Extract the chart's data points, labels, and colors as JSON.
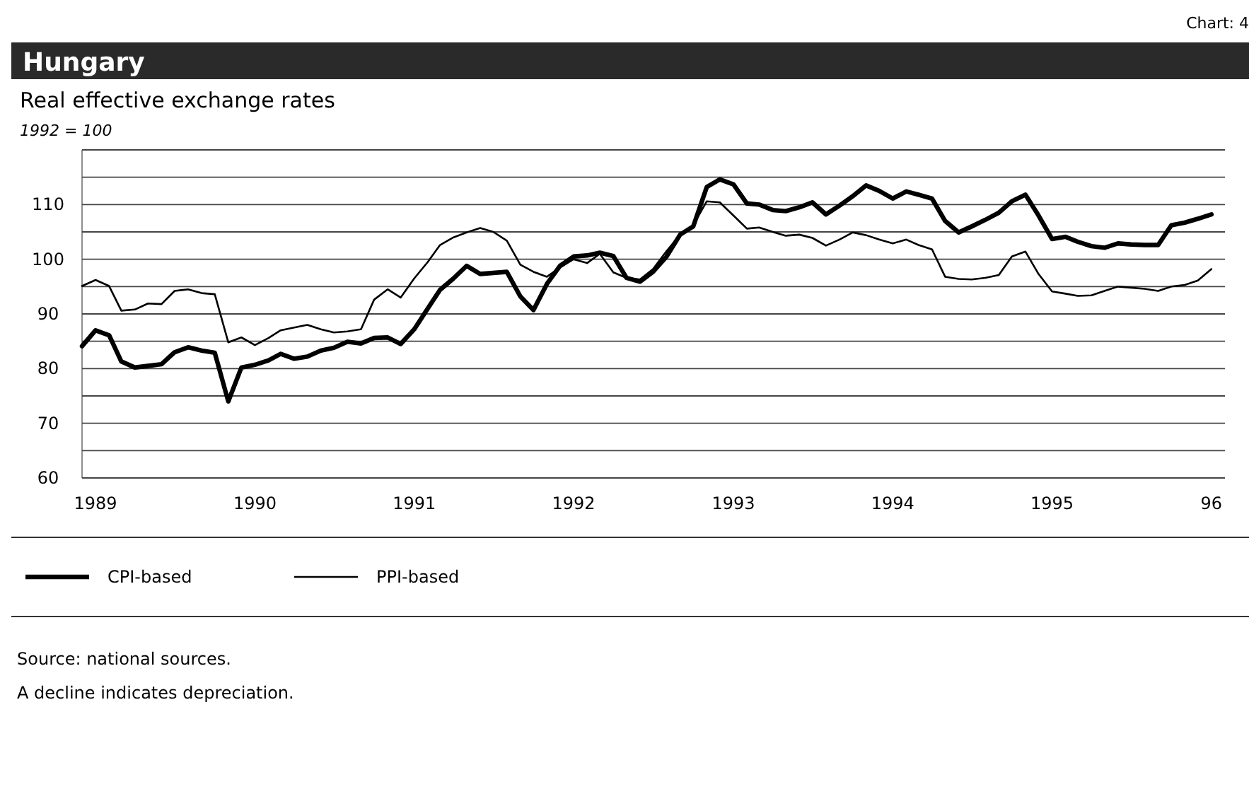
{
  "chart_data": {
    "type": "line",
    "title": "Hungary",
    "subtitle": "Real effective exchange rates",
    "ylabel": "1992 = 100",
    "annotations": [
      "Chart: 4",
      "Source: national sources.",
      "A decline indicates depreciation."
    ],
    "x": [
      "1988-12",
      "1989-01",
      "1989-02",
      "1989-03",
      "1989-04",
      "1989-05",
      "1989-06",
      "1989-07",
      "1989-08",
      "1989-09",
      "1989-10",
      "1989-11",
      "1989-12",
      "1990-01",
      "1990-02",
      "1990-03",
      "1990-04",
      "1990-05",
      "1990-06",
      "1990-07",
      "1990-08",
      "1990-09",
      "1990-10",
      "1990-11",
      "1990-12",
      "1991-01",
      "1991-02",
      "1991-03",
      "1991-04",
      "1991-05",
      "1991-06",
      "1991-07",
      "1991-08",
      "1991-09",
      "1991-10",
      "1991-11",
      "1991-12",
      "1992-01",
      "1992-02",
      "1992-03",
      "1992-04",
      "1992-05",
      "1992-06",
      "1992-07",
      "1992-08",
      "1992-09",
      "1992-10",
      "1992-11",
      "1992-12",
      "1993-01",
      "1993-02",
      "1993-03",
      "1993-04",
      "1993-05",
      "1993-06",
      "1993-07",
      "1993-08",
      "1993-09",
      "1993-10",
      "1993-11",
      "1993-12",
      "1994-01",
      "1994-02",
      "1994-03",
      "1994-04",
      "1994-05",
      "1994-06",
      "1994-07",
      "1994-08",
      "1994-09",
      "1994-10",
      "1994-11",
      "1994-12",
      "1995-01",
      "1995-02",
      "1995-03",
      "1995-04",
      "1995-05",
      "1995-06",
      "1995-07",
      "1995-08",
      "1995-09",
      "1995-10",
      "1995-11",
      "1995-12",
      "1996-01"
    ],
    "xlim": [
      "1988-12",
      "1996-02"
    ],
    "xticks": [
      {
        "value": "1989",
        "label": "1989"
      },
      {
        "value": "1990",
        "label": "1990"
      },
      {
        "value": "1991",
        "label": "1991"
      },
      {
        "value": "1992",
        "label": "1992"
      },
      {
        "value": "1993",
        "label": "1993"
      },
      {
        "value": "1994",
        "label": "1994"
      },
      {
        "value": "1995",
        "label": "1995"
      },
      {
        "value": "1996",
        "label": "96"
      }
    ],
    "ylim": [
      60,
      120
    ],
    "yticks": [
      60,
      {
        "value": 65,
        "label": null
      },
      70,
      {
        "value": 75,
        "label": null
      },
      80,
      {
        "value": 85,
        "label": null
      },
      90,
      {
        "value": 95,
        "label": null
      },
      100,
      {
        "value": 105,
        "label": null
      },
      110,
      {
        "value": 115,
        "label": null
      },
      {
        "value": 120,
        "label": null
      }
    ],
    "grid": "y",
    "legend": "bottom",
    "marker": "none",
    "line_style": "solid",
    "series": [
      {
        "name": "CPI-based",
        "color": "#000000",
        "values": [
          84.1,
          87,
          86.1,
          81.3,
          80.2,
          80.5,
          80.8,
          83,
          83.9,
          83.3,
          82.9,
          74,
          80.2,
          80.7,
          81.5,
          82.7,
          81.8,
          82.2,
          83.3,
          83.8,
          84.9,
          84.6,
          85.6,
          85.7,
          84.5,
          87.2,
          91,
          94.4,
          96.5,
          98.8,
          97.3,
          97.5,
          97.7,
          93.2,
          90.7,
          95.5,
          98.8,
          100.5,
          100.7,
          101.2,
          100.6,
          96.6,
          95.9,
          97.7,
          100.5,
          104.5,
          106,
          113.2,
          114.6,
          113.7,
          110.2,
          110,
          109,
          108.8,
          109.5,
          110.4,
          108.2,
          109.8,
          111.5,
          113.5,
          112.5,
          111.1,
          112.4,
          111.8,
          111.1,
          107,
          104.9,
          106,
          107.2,
          108.5,
          110.6,
          111.8,
          108,
          103.7,
          104.1,
          103.2,
          102.4,
          102.1,
          102.9,
          102.7,
          102.6,
          102.6,
          106.2,
          106.7,
          107.4,
          108.2
        ]
      },
      {
        "name": "PPI-based",
        "color": "#000000",
        "values": [
          95.1,
          96.2,
          95.1,
          90.6,
          90.8,
          91.9,
          91.8,
          94.2,
          94.5,
          93.8,
          93.6,
          84.8,
          85.7,
          84.3,
          85.6,
          87,
          87.5,
          88,
          87.2,
          86.6,
          86.8,
          87.2,
          92.6,
          94.5,
          93,
          96.5,
          99.5,
          102.6,
          104,
          104.9,
          105.7,
          105,
          103.4,
          99,
          97.7,
          96.8,
          98.5,
          100,
          99.3,
          101,
          97.6,
          96.6,
          96.3,
          98.2,
          101.5,
          104.5,
          106.2,
          110.6,
          110.4,
          108,
          105.6,
          105.8,
          105,
          104.3,
          104.5,
          103.9,
          102.5,
          103.6,
          104.9,
          104.4,
          103.6,
          102.9,
          103.6,
          102.6,
          101.8,
          96.8,
          96.4,
          96.3,
          96.6,
          97.1,
          100.5,
          101.4,
          97.3,
          94.1,
          93.7,
          93.3,
          93.4,
          94.2,
          95,
          94.8,
          94.6,
          94.2,
          95,
          95.3,
          96.1,
          98.2
        ]
      }
    ]
  }
}
